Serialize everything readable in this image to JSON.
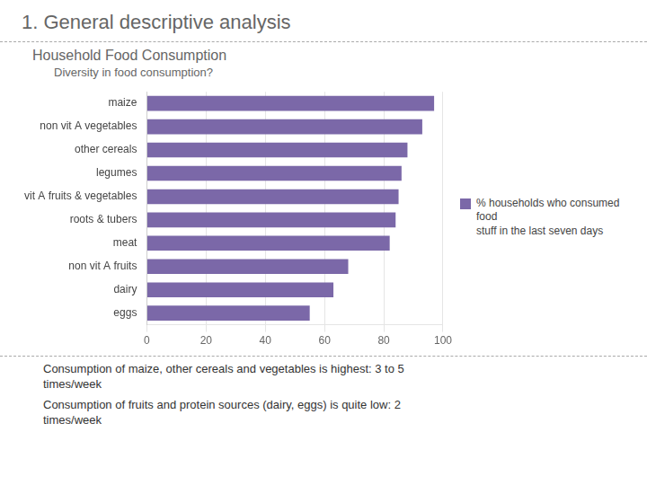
{
  "chart_data": {
    "type": "bar",
    "orientation": "horizontal",
    "title": "1.  General descriptive analysis",
    "subtitle": [
      "Household Food Consumption",
      "Diversity in food consumption?"
    ],
    "annotations": [
      "Consumption of maize, other cereals and vegetables is highest: 3 to 5\ntimes/week",
      "Consumption of fruits and protein sources (dairy, eggs) is quite low: 2\ntimes/week"
    ],
    "categories": [
      "eggs",
      "dairy",
      "non vit A fruits",
      "meat",
      "roots & tubers",
      "vit A fruits & vegetables",
      "legumes",
      "other cereals",
      "non vit A vegetables",
      "maize"
    ],
    "series": [
      {
        "name": "% households who consumed food\nstuff in the last seven days",
        "color": "#7B68A8",
        "values": [
          55,
          63,
          68,
          82,
          84,
          85,
          86,
          88,
          93,
          97
        ]
      }
    ],
    "xlim": [
      0,
      100
    ],
    "xticks": [
      0,
      20,
      40,
      60,
      80,
      100
    ],
    "grid": true,
    "legend": "right"
  }
}
